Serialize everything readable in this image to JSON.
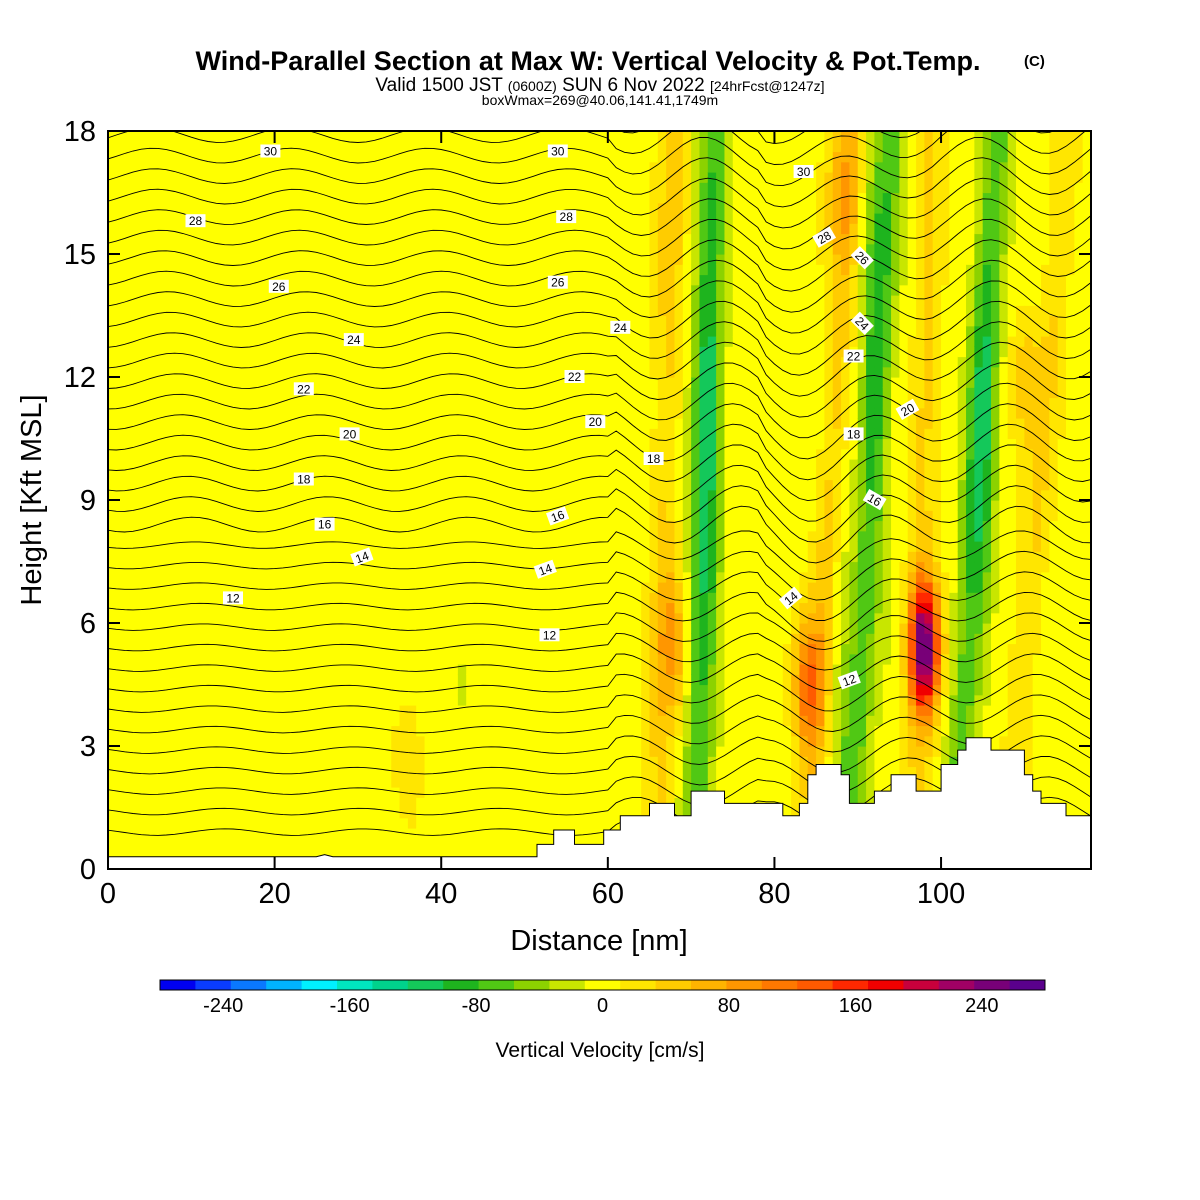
{
  "chart_data": {
    "type": "heatmap",
    "title": "Wind-Parallel Section at Max W: Vertical Velocity & Pot.Temp.",
    "title_mark": "(C)",
    "subtitle_prefix": "Valid 1500 JST",
    "subtitle_utc": "(0600Z)",
    "subtitle_date": "SUN 6 Nov 2022",
    "subtitle_fcst": "[24hrFcst@1247z]",
    "subtitle2": "boxWmax=269@40.06,141.41,1749m",
    "xlabel": "Distance [nm]",
    "ylabel": "Height [Kft MSL]",
    "xlim": [
      0,
      118
    ],
    "ylim": [
      0,
      18
    ],
    "x_ticks": [
      "0",
      "20",
      "40",
      "60",
      "80",
      "100"
    ],
    "x_tick_values": [
      0,
      20,
      40,
      60,
      80,
      100
    ],
    "y_ticks": [
      "0",
      "3",
      "6",
      "9",
      "12",
      "15",
      "18"
    ],
    "y_tick_values": [
      0,
      3,
      6,
      9,
      12,
      15,
      18
    ],
    "colorbar": {
      "title": "Vertical Velocity [cm/s]",
      "labels": [
        "-240",
        "-160",
        "-80",
        "0",
        "80",
        "160",
        "240"
      ],
      "label_values": [
        -240,
        -160,
        -80,
        0,
        80,
        160,
        240
      ],
      "range": [
        -280,
        280
      ],
      "colors": [
        "#0000f0",
        "#0a3cff",
        "#0a78ff",
        "#00b4ff",
        "#00f0ff",
        "#00e6be",
        "#00d28c",
        "#14c85a",
        "#1eb41e",
        "#50c814",
        "#8cd200",
        "#c8e600",
        "#ffff00",
        "#ffe600",
        "#ffcc00",
        "#ffb400",
        "#ff9600",
        "#ff7800",
        "#ff5a00",
        "#ff2800",
        "#f00000",
        "#c8003c",
        "#a00064",
        "#780078",
        "#5a008c"
      ]
    },
    "updraft_cores": [
      {
        "x": 98,
        "z": 5.4,
        "w": 269
      },
      {
        "x": 84,
        "z": 4.5,
        "w": 110
      },
      {
        "x": 68,
        "z": 5.5,
        "w": 70
      },
      {
        "x": 36,
        "z": 2.6,
        "w": 60
      },
      {
        "x": 88,
        "z": 16.5,
        "w": 60
      },
      {
        "x": 110,
        "z": 12,
        "w": 50
      }
    ],
    "downdraft_cores": [
      {
        "x": 72,
        "z": 10,
        "w": -110
      },
      {
        "x": 92,
        "z": 13,
        "w": -90
      },
      {
        "x": 105,
        "z": 10,
        "w": -100
      },
      {
        "x": 88,
        "z": 4,
        "w": -60
      },
      {
        "x": 43,
        "z": 3.5,
        "w": -40
      }
    ],
    "pot_temp_contour_labels": [
      {
        "text": "30",
        "x": 19.5,
        "z": 17.5,
        "rot": 0
      },
      {
        "text": "30",
        "x": 54,
        "z": 17.5,
        "rot": 0
      },
      {
        "text": "30",
        "x": 83.5,
        "z": 17.0,
        "rot": 0
      },
      {
        "text": "28",
        "x": 10.5,
        "z": 15.8,
        "rot": 0
      },
      {
        "text": "28",
        "x": 55,
        "z": 15.9,
        "rot": 0
      },
      {
        "text": "28",
        "x": 86,
        "z": 15.4,
        "rot": -30
      },
      {
        "text": "26",
        "x": 20.5,
        "z": 14.2,
        "rot": 0
      },
      {
        "text": "26",
        "x": 54,
        "z": 14.3,
        "rot": 0
      },
      {
        "text": "26",
        "x": 90.5,
        "z": 14.9,
        "rot": 45
      },
      {
        "text": "24",
        "x": 29.5,
        "z": 12.9,
        "rot": 0
      },
      {
        "text": "24",
        "x": 61.5,
        "z": 13.2,
        "rot": 0
      },
      {
        "text": "24",
        "x": 90.5,
        "z": 13.3,
        "rot": 45
      },
      {
        "text": "22",
        "x": 23.5,
        "z": 11.7,
        "rot": 0
      },
      {
        "text": "22",
        "x": 56,
        "z": 12.0,
        "rot": 0
      },
      {
        "text": "22",
        "x": 89.5,
        "z": 12.5,
        "rot": 0
      },
      {
        "text": "20",
        "x": 29,
        "z": 10.6,
        "rot": 0
      },
      {
        "text": "20",
        "x": 58.5,
        "z": 10.9,
        "rot": 0
      },
      {
        "text": "20",
        "x": 96,
        "z": 11.2,
        "rot": -30
      },
      {
        "text": "18",
        "x": 23.5,
        "z": 9.5,
        "rot": 0
      },
      {
        "text": "18",
        "x": 65.5,
        "z": 10.0,
        "rot": 0
      },
      {
        "text": "18",
        "x": 89.5,
        "z": 10.6,
        "rot": 0
      },
      {
        "text": "16",
        "x": 26,
        "z": 8.4,
        "rot": 0
      },
      {
        "text": "16",
        "x": 54,
        "z": 8.6,
        "rot": -20
      },
      {
        "text": "16",
        "x": 92,
        "z": 9.0,
        "rot": 30
      },
      {
        "text": "14",
        "x": 30.5,
        "z": 7.6,
        "rot": -20
      },
      {
        "text": "14",
        "x": 52.5,
        "z": 7.3,
        "rot": -20
      },
      {
        "text": "14",
        "x": 82,
        "z": 6.6,
        "rot": -40
      },
      {
        "text": "12",
        "x": 15,
        "z": 6.6,
        "rot": 0
      },
      {
        "text": "12",
        "x": 53,
        "z": 5.7,
        "rot": 0
      },
      {
        "text": "12",
        "x": 89,
        "z": 4.6,
        "rot": -20
      }
    ],
    "terrain_profile": [
      [
        0,
        0.3
      ],
      [
        5,
        0.3
      ],
      [
        10,
        0.3
      ],
      [
        20,
        0.3
      ],
      [
        25,
        0.3
      ],
      [
        26,
        0.35
      ],
      [
        27,
        0.3
      ],
      [
        30,
        0.3
      ],
      [
        40,
        0.3
      ],
      [
        50,
        0.3
      ],
      [
        51.5,
        0.3
      ],
      [
        51.5,
        0.6
      ],
      [
        53.5,
        0.6
      ],
      [
        53.5,
        0.95
      ],
      [
        56,
        0.95
      ],
      [
        56,
        0.6
      ],
      [
        59.5,
        0.6
      ],
      [
        59.5,
        0.95
      ],
      [
        61.5,
        0.95
      ],
      [
        61.5,
        1.3
      ],
      [
        65,
        1.3
      ],
      [
        65,
        1.6
      ],
      [
        68,
        1.6
      ],
      [
        68,
        1.3
      ],
      [
        70,
        1.3
      ],
      [
        70,
        1.9
      ],
      [
        74,
        1.9
      ],
      [
        74,
        1.6
      ],
      [
        81,
        1.6
      ],
      [
        81,
        1.3
      ],
      [
        83,
        1.3
      ],
      [
        83,
        1.6
      ],
      [
        84,
        1.6
      ],
      [
        84,
        2.3
      ],
      [
        85,
        2.3
      ],
      [
        85,
        2.55
      ],
      [
        88,
        2.55
      ],
      [
        88,
        2.3
      ],
      [
        89,
        2.3
      ],
      [
        89,
        1.6
      ],
      [
        92,
        1.6
      ],
      [
        92,
        1.9
      ],
      [
        94,
        1.9
      ],
      [
        94,
        2.3
      ],
      [
        97,
        2.3
      ],
      [
        97,
        1.9
      ],
      [
        100,
        1.9
      ],
      [
        100,
        2.55
      ],
      [
        102,
        2.55
      ],
      [
        102,
        2.9
      ],
      [
        103,
        2.9
      ],
      [
        103,
        3.2
      ],
      [
        106,
        3.2
      ],
      [
        106,
        2.9
      ],
      [
        110,
        2.9
      ],
      [
        110,
        2.3
      ],
      [
        111,
        2.3
      ],
      [
        111,
        1.9
      ],
      [
        112,
        1.9
      ],
      [
        112,
        1.6
      ],
      [
        115,
        1.6
      ],
      [
        115,
        1.3
      ],
      [
        118,
        1.3
      ]
    ]
  }
}
